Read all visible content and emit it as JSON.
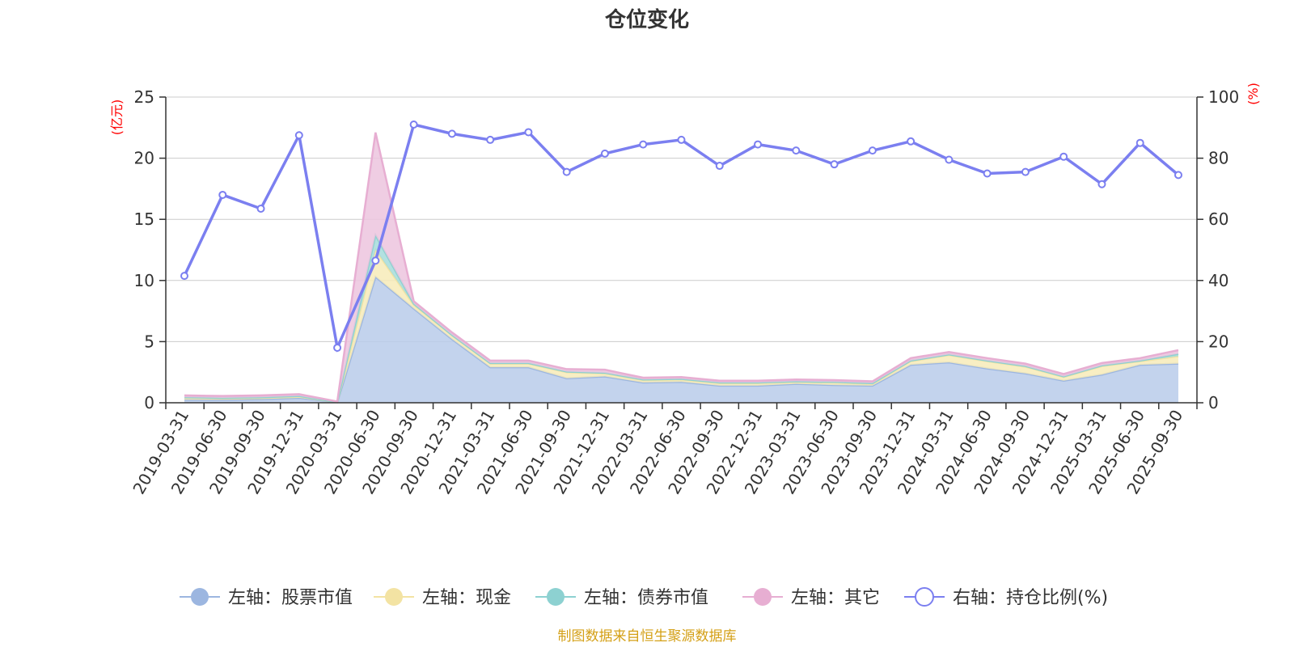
{
  "chart_data": {
    "type": "area",
    "title": "仓位变化",
    "left_unit": "(亿元)",
    "right_unit": "(%)",
    "ylim_left": [
      0,
      25
    ],
    "ylim_right": [
      0,
      100
    ],
    "yticks_left": [
      "0",
      "5",
      "10",
      "15",
      "20",
      "25"
    ],
    "yticks_right": [
      "0",
      "20",
      "40",
      "60",
      "80",
      "100"
    ],
    "grid": true,
    "legend_position": "bottom",
    "categories": [
      "2019-03-31",
      "2019-06-30",
      "2019-09-30",
      "2019-12-31",
      "2020-03-31",
      "2020-06-30",
      "2020-09-30",
      "2020-12-31",
      "2021-03-31",
      "2021-06-30",
      "2021-09-30",
      "2021-12-31",
      "2022-03-31",
      "2022-06-30",
      "2022-09-30",
      "2022-12-31",
      "2023-03-31",
      "2023-06-30",
      "2023-09-30",
      "2023-12-31",
      "2024-03-31",
      "2024-06-30",
      "2024-09-30",
      "2024-12-31",
      "2025-03-31",
      "2025-06-30",
      "2025-09-30"
    ],
    "series": [
      {
        "name": "左轴：股票市值",
        "axis": "left",
        "kind": "area",
        "color": "#9cb6e0",
        "fill": "#b8cbea",
        "values": [
          0.25,
          0.25,
          0.3,
          0.4,
          0.05,
          10.3,
          7.7,
          5.2,
          2.9,
          2.9,
          2.0,
          2.15,
          1.65,
          1.7,
          1.4,
          1.4,
          1.55,
          1.45,
          1.4,
          3.1,
          3.3,
          2.8,
          2.4,
          1.8,
          2.3,
          3.1,
          3.2
        ]
      },
      {
        "name": "左轴：现金",
        "axis": "left",
        "kind": "area",
        "color": "#f3e3a3",
        "fill": "#f7ebb8",
        "values": [
          0.15,
          0.1,
          0.1,
          0.1,
          0.0,
          2.2,
          0.3,
          0.3,
          0.3,
          0.3,
          0.5,
          0.25,
          0.2,
          0.2,
          0.2,
          0.2,
          0.15,
          0.2,
          0.15,
          0.3,
          0.6,
          0.6,
          0.55,
          0.3,
          0.7,
          0.3,
          0.6
        ]
      },
      {
        "name": "左轴：债券市值",
        "axis": "left",
        "kind": "area",
        "color": "#8dd1d1",
        "fill": "#a6dcdc",
        "values": [
          0.05,
          0.05,
          0.05,
          0.05,
          0.0,
          1.2,
          0.1,
          0.05,
          0.05,
          0.05,
          0.05,
          0.05,
          0.05,
          0.05,
          0.05,
          0.05,
          0.05,
          0.05,
          0.05,
          0.05,
          0.05,
          0.05,
          0.05,
          0.05,
          0.05,
          0.05,
          0.2
        ]
      },
      {
        "name": "左轴：其它",
        "axis": "left",
        "kind": "area",
        "color": "#e7aed2",
        "fill": "#ecc4de",
        "values": [
          0.15,
          0.15,
          0.15,
          0.15,
          0.05,
          8.4,
          0.2,
          0.2,
          0.2,
          0.2,
          0.2,
          0.25,
          0.15,
          0.15,
          0.15,
          0.15,
          0.15,
          0.15,
          0.15,
          0.2,
          0.2,
          0.2,
          0.2,
          0.2,
          0.2,
          0.2,
          0.3
        ]
      },
      {
        "name": "右轴：持仓比例(%)",
        "axis": "right",
        "kind": "line",
        "color": "#7b7ff0",
        "values": [
          41.5,
          68,
          63.5,
          87.5,
          18,
          46.5,
          91,
          88,
          86,
          88.5,
          75.5,
          81.5,
          84.5,
          86,
          77.5,
          84.5,
          82.5,
          78,
          82.5,
          85.5,
          79.5,
          75,
          75.5,
          80.5,
          71.5,
          85,
          74.5
        ]
      }
    ],
    "source": "制图数据来自恒生聚源数据库"
  }
}
